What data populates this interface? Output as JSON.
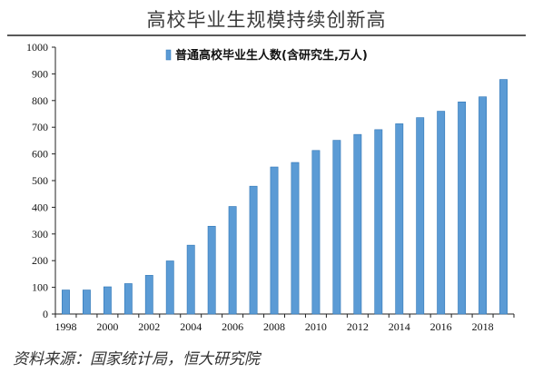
{
  "title": "高校毕业生规模持续创新高",
  "source": "资料来源：国家统计局，恒大研究院",
  "colors": {
    "bar": "#5b9bd5",
    "bar_edge": "#2e75b6",
    "axis": "#222222",
    "title": "#3a3a3a"
  },
  "chart_data": {
    "type": "bar",
    "categories": [
      "1998",
      "1999",
      "2000",
      "2001",
      "2002",
      "2003",
      "2004",
      "2005",
      "2006",
      "2007",
      "2008",
      "2009",
      "2010",
      "2011",
      "2012",
      "2013",
      "2014",
      "2015",
      "2016",
      "2017",
      "2018",
      "2019"
    ],
    "x_tick_labels": [
      "1998",
      "2000",
      "2002",
      "2004",
      "2006",
      "2008",
      "2010",
      "2012",
      "2014",
      "2016",
      "2018"
    ],
    "series": [
      {
        "name": "普通高校毕业生人数(含研究生,万人)",
        "values": [
          90,
          90,
          102,
          114,
          145,
          199,
          258,
          329,
          403,
          479,
          551,
          568,
          613,
          651,
          673,
          691,
          713,
          736,
          760,
          795,
          814,
          879
        ]
      }
    ],
    "ylim": [
      0,
      1000
    ],
    "yticks": [
      0,
      100,
      200,
      300,
      400,
      500,
      600,
      700,
      800,
      900,
      1000
    ],
    "legend_position": "top-center",
    "grid": false
  }
}
